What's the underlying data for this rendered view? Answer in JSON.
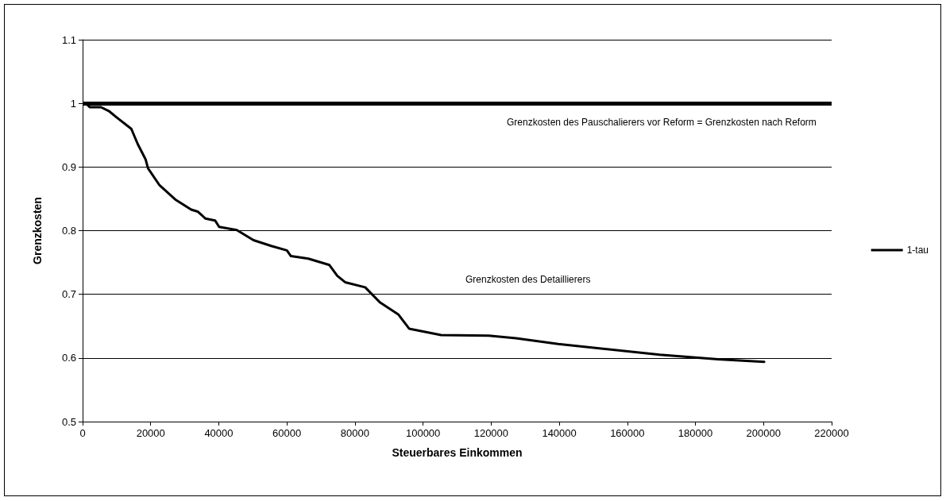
{
  "chart_data": {
    "type": "line",
    "xlabel": "Steuerbares Einkommen",
    "ylabel": "Grenzkosten",
    "x": [
      1000,
      2100,
      5400,
      7700,
      10000,
      14300,
      16200,
      18500,
      19200,
      22500,
      27200,
      31900,
      33800,
      36100,
      38900,
      40100,
      45300,
      50200,
      55400,
      60000,
      61200,
      66300,
      72500,
      74800,
      77100,
      83000,
      87400,
      92800,
      95900,
      105300,
      119300,
      127300,
      139700,
      169500,
      186600,
      200200
    ],
    "series": [
      {
        "name": "1-tau",
        "color": "#000000",
        "values": [
          1.0,
          0.994,
          0.994,
          0.988,
          0.978,
          0.96,
          0.936,
          0.912,
          0.898,
          0.872,
          0.849,
          0.833,
          0.83,
          0.819,
          0.816,
          0.806,
          0.801,
          0.785,
          0.776,
          0.769,
          0.76,
          0.756,
          0.746,
          0.729,
          0.719,
          0.711,
          0.687,
          0.668,
          0.646,
          0.636,
          0.635,
          0.631,
          0.622,
          0.605,
          0.598,
          0.594
        ]
      }
    ],
    "ref_lines": [
      {
        "axis": "y",
        "value": 1,
        "color": "#000000",
        "line_style": "solid"
      }
    ],
    "annotations": [
      "Grenzkosten des Pauschalierers vor Reform = Grenzkosten nach Reform",
      "Grenzkosten des Detaillierers"
    ],
    "xlim": [
      0,
      220000
    ],
    "xticks": [
      0,
      20000,
      40000,
      60000,
      80000,
      100000,
      120000,
      140000,
      160000,
      180000,
      200000,
      220000
    ],
    "ylim": [
      0.5,
      1.1
    ],
    "yticks": [
      0.5,
      0.6,
      0.7,
      0.8,
      0.9,
      1,
      1.1
    ],
    "grid": "y",
    "legend": "right",
    "marker": "none",
    "line_style": "solid"
  }
}
